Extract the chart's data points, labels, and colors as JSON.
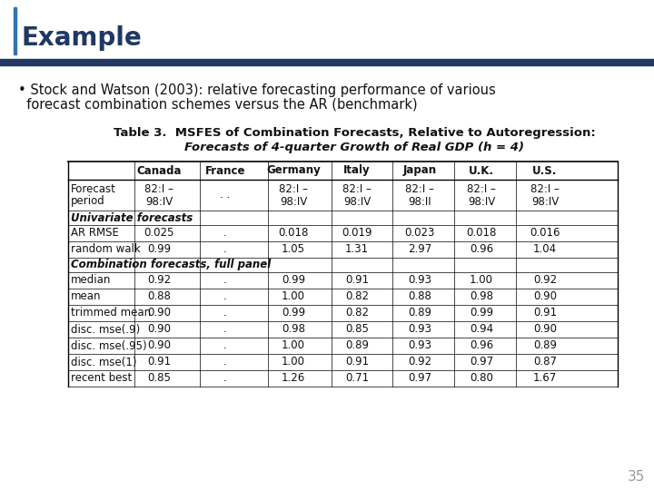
{
  "title": "Example",
  "title_color": "#1f3864",
  "header_bar_color": "#1f3864",
  "accent_bar_color": "#2e74b5",
  "table_title_line1": "Table 3.  MSFES of Combination Forecasts, Relative to Autoregression:",
  "table_title_line2": "Forecasts of 4-quarter Growth of Real GDP (ℎ = 4)",
  "columns": [
    "",
    "Canada",
    "France",
    "Germany",
    "Italy",
    "Japan",
    "U.K.",
    "U.S."
  ],
  "rows": [
    [
      "Forecast\nperiod",
      "82:I –\n98:IV",
      ". .",
      "82:I –\n98:IV",
      "82:I –\n98:IV",
      "82:I –\n98:II",
      "82:I –\n98:IV",
      "82:I –\n98:IV"
    ],
    [
      "Univariate forecasts",
      "",
      "",
      "",
      "",
      "",
      "",
      ""
    ],
    [
      "AR RMSE",
      "0.025",
      ".",
      "0.018",
      "0.019",
      "0.023",
      "0.018",
      "0.016"
    ],
    [
      "random walk",
      "0.99",
      ".",
      "1.05",
      "1.31",
      "2.97",
      "0.96",
      "1.04"
    ],
    [
      "Combination forecasts, full panel",
      "",
      "",
      "",
      "",
      "",
      "",
      ""
    ],
    [
      "median",
      "0.92",
      ".",
      "0.99",
      "0.91",
      "0.93",
      "1.00",
      "0.92"
    ],
    [
      "mean",
      "0.88",
      ".",
      "1.00",
      "0.82",
      "0.88",
      "0.98",
      "0.90"
    ],
    [
      "trimmed mean",
      "0.90",
      ".",
      "0.99",
      "0.82",
      "0.89",
      "0.99",
      "0.91"
    ],
    [
      "disc. mse(.9)",
      "0.90",
      ".",
      "0.98",
      "0.85",
      "0.93",
      "0.94",
      "0.90"
    ],
    [
      "disc. mse(.95)",
      "0.90",
      ".",
      "1.00",
      "0.89",
      "0.93",
      "0.96",
      "0.89"
    ],
    [
      "disc. mse(1)",
      "0.91",
      ".",
      "1.00",
      "0.91",
      "0.92",
      "0.97",
      "0.87"
    ],
    [
      "recent best",
      "0.85",
      ".",
      "1.26",
      "0.71",
      "0.97",
      "0.80",
      "1.67"
    ]
  ],
  "section_rows": [
    1,
    4
  ],
  "page_number": "35",
  "bg_color": "#ffffff",
  "bullet_line1": "• Stock and Watson (2003): relative forecasting performance of various",
  "bullet_line2": "  forecast combination schemes versus the AR (benchmark)"
}
